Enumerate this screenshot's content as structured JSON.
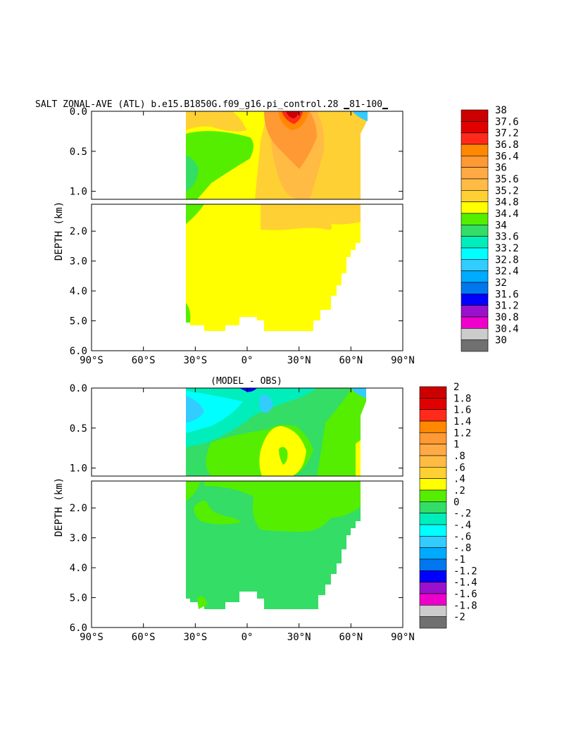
{
  "chart_data": [
    {
      "type": "heatmap",
      "title": "SALT ZONAL-AVE (ATL) b.e15.B1850G.f09_g16.pi_control.28 ▁81-100▁",
      "ylabel": "DEPTH (km)",
      "xlabel": "",
      "x_ticks": [
        "90°S",
        "60°S",
        "30°S",
        "0°",
        "30°N",
        "60°N",
        "90°N"
      ],
      "x_tick_values": [
        -90,
        -60,
        -30,
        0,
        30,
        60,
        90
      ],
      "y_ticks_upper": [
        "0.0",
        "0.5",
        "1.0"
      ],
      "y_ticks_upper_values": [
        0,
        0.5,
        1.0
      ],
      "y_ticks_lower": [
        "2.0",
        "3.0",
        "4.0",
        "5.0",
        "6.0"
      ],
      "y_ticks_lower_values": [
        2,
        3,
        4,
        5,
        6
      ],
      "xlim": [
        -90,
        90
      ],
      "ylim_upper": [
        0,
        1.1
      ],
      "ylim_lower": [
        1.1,
        6.0
      ],
      "colorbar": {
        "labels": [
          "38",
          "37.6",
          "37.2",
          "36.8",
          "36.4",
          "36",
          "35.6",
          "35.2",
          "34.8",
          "34.4",
          "34",
          "33.6",
          "33.2",
          "32.8",
          "32.4",
          "32",
          "31.6",
          "31.2",
          "30.8",
          "30.4",
          "30"
        ],
        "colors": [
          "#cc0000",
          "#e00000",
          "#ff2a1a",
          "#ff8800",
          "#ff9933",
          "#ffaa44",
          "#ffbb44",
          "#ffd033",
          "#ffff00",
          "#55ee00",
          "#33dd66",
          "#00eebb",
          "#00ffff",
          "#33ccff",
          "#00aaff",
          "#0077ee",
          "#0000ff",
          "#9911cc",
          "#ee00cc",
          "#cccccc",
          "#707070"
        ]
      }
    },
    {
      "type": "heatmap",
      "title": "(MODEL - OBS)",
      "ylabel": "DEPTH (km)",
      "xlabel": "",
      "x_ticks": [
        "90°S",
        "60°S",
        "30°S",
        "0°",
        "30°N",
        "60°N",
        "90°N"
      ],
      "x_tick_values": [
        -90,
        -60,
        -30,
        0,
        30,
        60,
        90
      ],
      "y_ticks_upper": [
        "0.0",
        "0.5",
        "1.0"
      ],
      "y_ticks_upper_values": [
        0,
        0.5,
        1.0
      ],
      "y_ticks_lower": [
        "2.0",
        "3.0",
        "4.0",
        "5.0",
        "6.0"
      ],
      "y_ticks_lower_values": [
        2,
        3,
        4,
        5,
        6
      ],
      "xlim": [
        -90,
        90
      ],
      "ylim_upper": [
        0,
        1.1
      ],
      "ylim_lower": [
        1.1,
        6.0
      ],
      "colorbar": {
        "labels": [
          "2",
          "1.8",
          "1.6",
          "1.4",
          "1.2",
          "1",
          ".8",
          ".6",
          ".4",
          ".2",
          "0",
          "-.2",
          "-.4",
          "-.6",
          "-.8",
          "-1",
          "-1.2",
          "-1.4",
          "-1.6",
          "-1.8",
          "-2"
        ],
        "colors": [
          "#cc0000",
          "#e00000",
          "#ff2a1a",
          "#ff8800",
          "#ff9933",
          "#ffaa44",
          "#ffbb44",
          "#ffd033",
          "#ffff00",
          "#55ee00",
          "#33dd66",
          "#00eebb",
          "#00ffff",
          "#33ccff",
          "#00aaff",
          "#0077ee",
          "#0000ff",
          "#9911cc",
          "#ee00cc",
          "#cccccc",
          "#707070"
        ]
      }
    }
  ]
}
